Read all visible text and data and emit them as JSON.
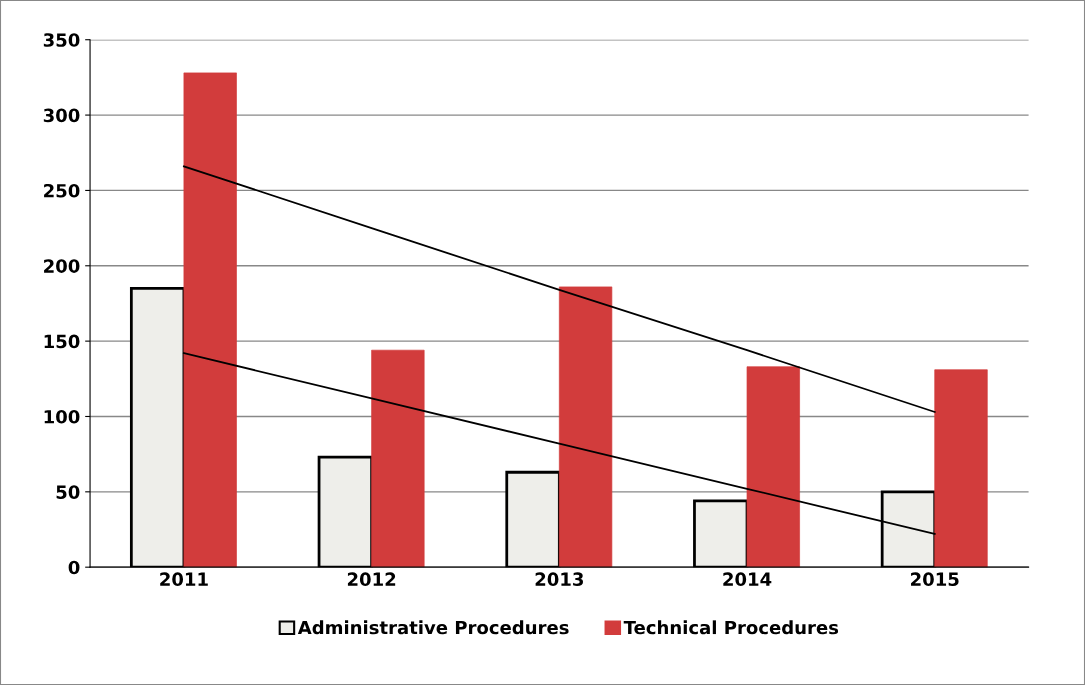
{
  "chart_data": {
    "type": "bar",
    "categories": [
      "2011",
      "2012",
      "2013",
      "2014",
      "2015"
    ],
    "series": [
      {
        "name": "Administrative Procedures",
        "color": "#eeeeea",
        "values": [
          185,
          73,
          63,
          44,
          50
        ]
      },
      {
        "name": "Technical Procedures",
        "color": "#d23c3c",
        "values": [
          328,
          144,
          186,
          133,
          131
        ]
      },
      {
        "type": "line",
        "color": "#000000",
        "values": [
          266,
          225,
          184,
          144,
          103
        ]
      },
      {
        "type": "line",
        "color": "#000000",
        "values": [
          142,
          112,
          82,
          52,
          22
        ]
      }
    ],
    "ylim": [
      0,
      350
    ],
    "yticks": [
      0,
      50,
      100,
      150,
      200,
      250,
      300,
      350
    ],
    "grid": "y",
    "legend": "bottom"
  }
}
